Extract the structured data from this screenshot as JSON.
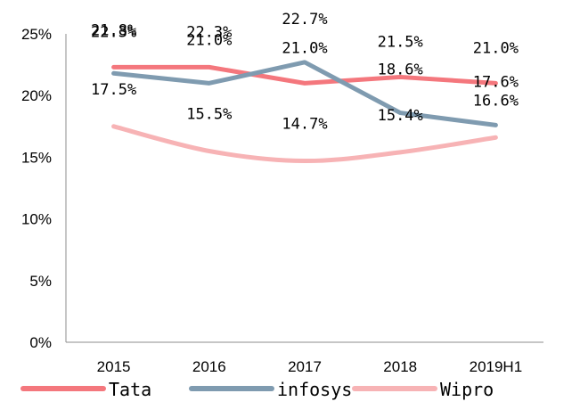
{
  "chart_data": {
    "type": "line",
    "title": "",
    "xlabel": "",
    "ylabel": "",
    "categories": [
      "2015",
      "2016",
      "2017",
      "2018",
      "2019H1"
    ],
    "ylim": [
      0,
      25
    ],
    "y_ticks": [
      "0%",
      "5%",
      "10%",
      "15%",
      "20%",
      "25%"
    ],
    "grid": false,
    "legend_position": "bottom",
    "series": [
      {
        "name": "Tata",
        "color": "#F4777D",
        "smooth": false,
        "values": [
          22.3,
          22.3,
          21.0,
          21.5,
          21.0
        ],
        "labels": [
          "22.3%",
          "22.3%",
          "21.0%",
          "21.5%",
          "21.0%"
        ]
      },
      {
        "name": "infosys",
        "color": "#7F9BB0",
        "smooth": false,
        "values": [
          21.8,
          21.0,
          22.7,
          18.6,
          17.6
        ],
        "labels": [
          "21.8%",
          "21.0%",
          "22.7%",
          "18.6%",
          "17.6%"
        ]
      },
      {
        "name": "Wipro",
        "color": "#F7B3B5",
        "smooth": true,
        "values": [
          17.5,
          15.5,
          14.7,
          15.4,
          16.6
        ],
        "labels": [
          "17.5%",
          "15.5%",
          "14.7%",
          "15.4%",
          "16.6%"
        ]
      }
    ]
  }
}
